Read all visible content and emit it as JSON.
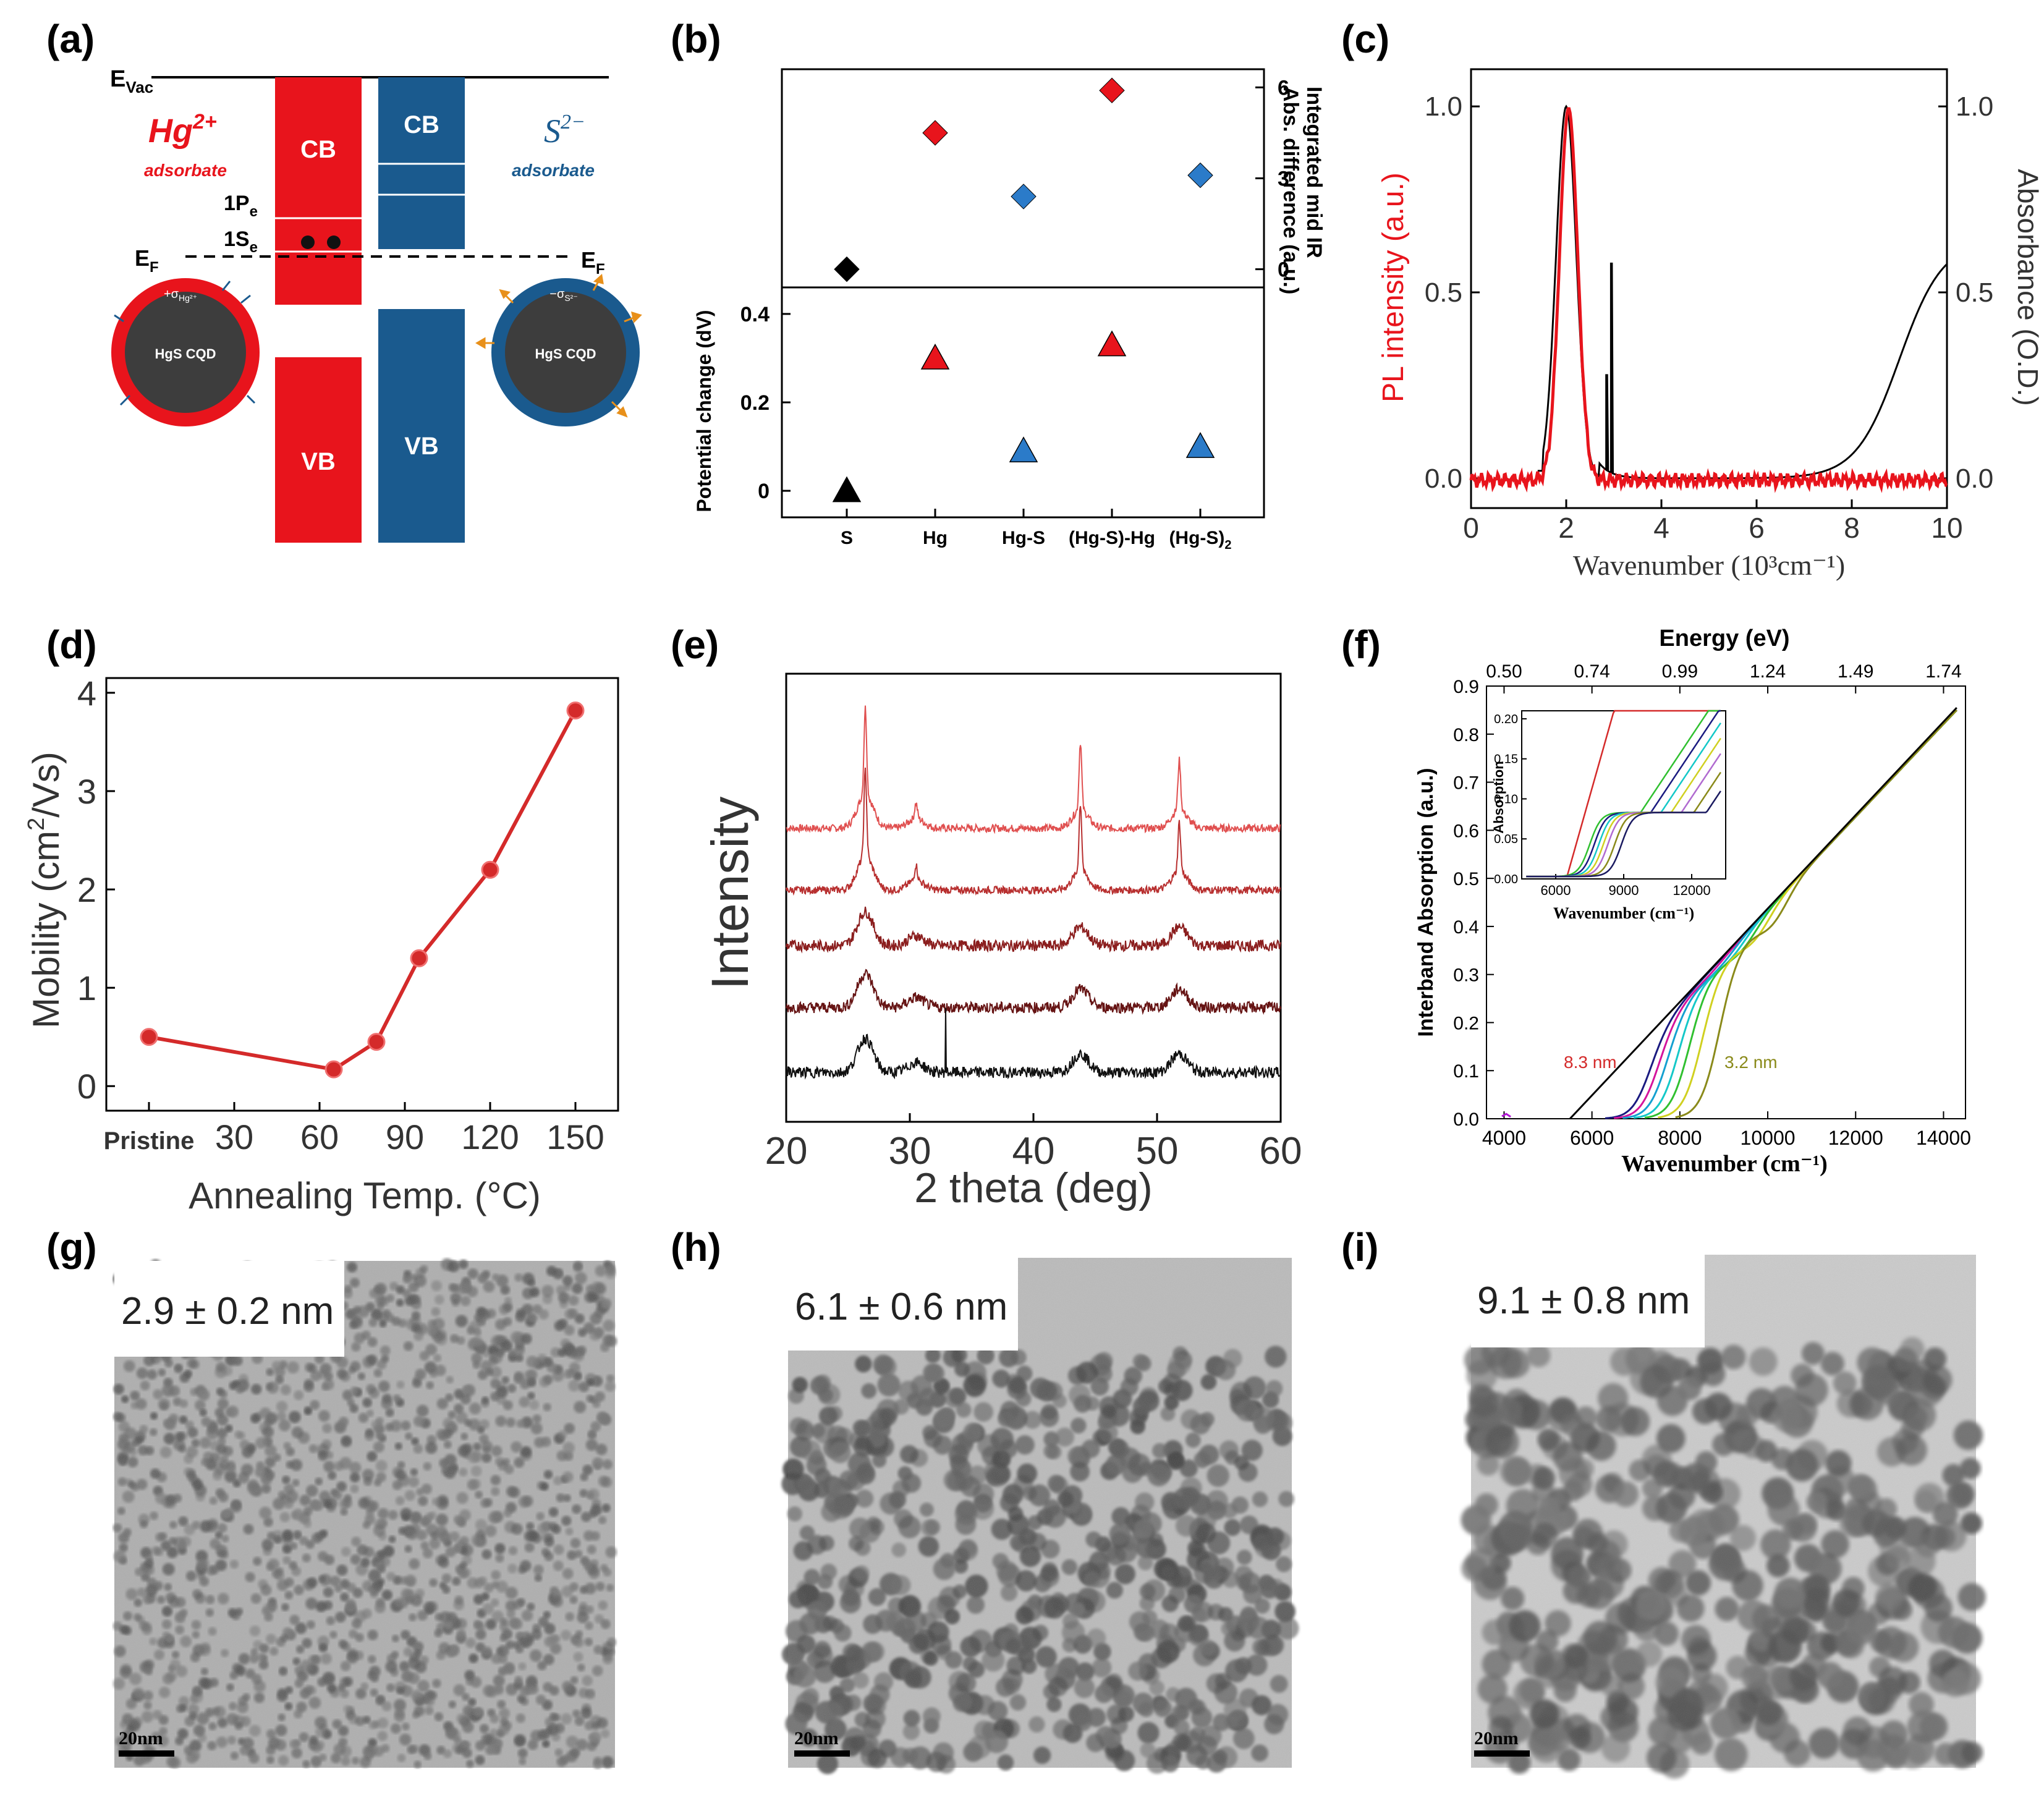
{
  "panel_labels": [
    "(a)",
    "(b)",
    "(c)",
    "(d)",
    "(e)",
    "(f)",
    "(g)",
    "(h)",
    "(i)"
  ],
  "colors": {
    "red": "#e8141c",
    "blue": "#1a5a8e",
    "black": "#000000",
    "olive": "#8a8a1a",
    "dark_red": "#8b1a1a"
  },
  "panel_a": {
    "evac": "E",
    "evac_sub": "Vac",
    "hg_label": "Hg",
    "hg_sup": "2+",
    "hg_adsorbate": "adsorbate",
    "s_label": "S",
    "s_sup": "2−",
    "s_adsorbate": "adsorbate",
    "cb": "CB",
    "vb": "VB",
    "level_1p": "1P",
    "level_1p_sub": "e",
    "level_1s": "1S",
    "level_1s_sub": "e",
    "ef": "E",
    "ef_sub": "F",
    "dot_left": "HgS CQD",
    "dot_right": "HgS CQD",
    "charge_left": "+σ",
    "charge_left_sub": "Hg²⁺",
    "charge_right": "−σ",
    "charge_right_sub": "S²⁻"
  },
  "chart_data": [
    {
      "id": "b_top",
      "type": "scatter",
      "categories": [
        "S",
        "Hg",
        "Hg-S",
        "(Hg-S)-Hg",
        "(Hg-S)"
      ],
      "category_sub": [
        "",
        "",
        "",
        "",
        "2"
      ],
      "values": [
        0,
        4.5,
        2.4,
        5.9,
        3.1
      ],
      "marker": "diamond",
      "marker_colors": [
        "#000000",
        "#e8141c",
        "#2b7bc9",
        "#e8141c",
        "#2b7bc9"
      ],
      "ylabel": "Integrated mid IR Abs. difference (a.u.)",
      "ylabel_line1": "Integrated mid IR",
      "ylabel_line2": "Abs. difference (a.u.)",
      "yticks": [
        0,
        3,
        6
      ],
      "ylim": [
        -0.6,
        6.6
      ]
    },
    {
      "id": "b_bottom",
      "type": "scatter",
      "categories": [
        "S",
        "Hg",
        "Hg-S",
        "(Hg-S)-Hg",
        "(Hg-S)"
      ],
      "values": [
        0.0,
        0.3,
        0.09,
        0.33,
        0.1
      ],
      "marker": "triangle",
      "marker_colors": [
        "#000000",
        "#e8141c",
        "#2b7bc9",
        "#e8141c",
        "#2b7bc9"
      ],
      "ylabel": "Potential change (dV)",
      "yticks": [
        0,
        0.2,
        0.4
      ],
      "ytick_labels": [
        "0",
        "0.2",
        "0.4"
      ],
      "ylim": [
        -0.06,
        0.46
      ]
    },
    {
      "id": "c",
      "type": "line",
      "xlabel": "Wavenumber (10³cm⁻¹)",
      "ylabel_left": "PL intensity (a.u.)",
      "ylabel_right": "Absorbance (O.D.)",
      "xlim": [
        0,
        10
      ],
      "ylim": [
        -0.08,
        1.1
      ],
      "xticks": [
        0,
        2,
        4,
        6,
        8,
        10
      ],
      "yticks": [
        0.0,
        0.5,
        1.0
      ],
      "ytick_labels": [
        "0.0",
        "0.5",
        "1.0"
      ],
      "series": [
        {
          "name": "PL",
          "color": "#e8141c",
          "peak_center": 2.05,
          "peak_width": 0.27,
          "baseline": -0.005
        },
        {
          "name": "Absorbance",
          "color": "#000000",
          "peak_center": 2.0,
          "peak_width": 0.3,
          "spike_x": [
            2.85,
            2.95
          ],
          "spike_y": [
            0.28,
            0.58
          ],
          "edge_center": 9.0,
          "edge_height": 0.64
        }
      ]
    },
    {
      "id": "d",
      "type": "line",
      "categories": [
        "Pristine",
        "30",
        "60",
        "90",
        "120",
        "150"
      ],
      "x": [
        0,
        65,
        80,
        95,
        120,
        150
      ],
      "values": [
        0.5,
        0.17,
        0.45,
        1.3,
        2.2,
        3.82
      ],
      "xlabel": "Annealing Temp. (°C)",
      "ylabel": "Mobility (cm²/Vs)",
      "ylabel_main": "Mobility (cm",
      "ylabel_sup": "2",
      "ylabel_tail": "/Vs)",
      "xticks": [
        0,
        30,
        60,
        90,
        120,
        150
      ],
      "yticks": [
        0,
        1,
        2,
        3,
        4
      ],
      "xlim": [
        -15,
        165
      ],
      "ylim": [
        -0.25,
        4.15
      ],
      "color": "#d42a2a"
    },
    {
      "id": "e",
      "type": "line",
      "xlabel": "2 theta (deg)",
      "ylabel": "Intensity",
      "xlim": [
        20,
        60
      ],
      "xticks": [
        20,
        30,
        40,
        50,
        60
      ],
      "peaks_deg": [
        26.4,
        30.5,
        43.8,
        51.8
      ],
      "series": [
        {
          "name": "trace-1",
          "color": "#e05050",
          "sharp": true
        },
        {
          "name": "trace-2",
          "color": "#b83030",
          "sharp": true
        },
        {
          "name": "trace-3",
          "color": "#8b1e1e",
          "sharp": false
        },
        {
          "name": "trace-4",
          "color": "#661414",
          "sharp": false
        },
        {
          "name": "trace-5",
          "color": "#111111",
          "sharp": false
        }
      ]
    },
    {
      "id": "f",
      "type": "line",
      "xlabel": "Wavenumber (cm⁻¹)",
      "ylabel": "Interband Absorption (a.u.)",
      "top_xlabel": "Energy (eV)",
      "top_ticks": [
        "0.50",
        "0.74",
        "0.99",
        "1.24",
        "1.49",
        "1.74"
      ],
      "xlim": [
        3600,
        14500
      ],
      "ylim": [
        0,
        0.9
      ],
      "xticks": [
        4000,
        6000,
        8000,
        10000,
        12000,
        14000
      ],
      "yticks": [
        0.0,
        0.1,
        0.2,
        0.3,
        0.4,
        0.5,
        0.6,
        0.7,
        0.8,
        0.9
      ],
      "ytick_labels": [
        "0.0",
        "0.1",
        "0.2",
        "0.3",
        "0.4",
        "0.5",
        "0.6",
        "0.7",
        "0.8",
        "0.9"
      ],
      "annotation_left": "8.3 nm",
      "annotation_right": "3.2 nm",
      "series": [
        {
          "name": "8.3 nm",
          "color": "#1a1a80",
          "onset": 6900
        },
        {
          "name": "s2",
          "color": "#d4149c",
          "onset": 7100
        },
        {
          "name": "s3",
          "color": "#14a0d0",
          "onset": 7300
        },
        {
          "name": "s4",
          "color": "#14c8c8",
          "onset": 7550
        },
        {
          "name": "s5",
          "color": "#30c030",
          "onset": 7800
        },
        {
          "name": "s6",
          "color": "#d0d020",
          "onset": 8100
        },
        {
          "name": "3.2 nm",
          "color": "#8a8a1a",
          "onset": 8500
        },
        {
          "name": "fit",
          "color": "#000000",
          "onset": 5500
        }
      ],
      "inset": {
        "xlabel": "Wavenumber (cm⁻¹)",
        "ylabel": "Absorption",
        "xticks": [
          6000,
          9000,
          12000
        ],
        "xlim": [
          4500,
          13500
        ],
        "yticks": [
          0.0,
          0.05,
          0.1,
          0.15,
          0.2
        ],
        "ytick_labels": [
          "0.00",
          "0.05",
          "0.10",
          "0.15",
          "0.20"
        ],
        "ylim": [
          0,
          0.21
        ]
      }
    }
  ],
  "tem": [
    {
      "id": "g",
      "size_label": "2.9 ± 0.2 nm",
      "scale_bar": "20nm"
    },
    {
      "id": "h",
      "size_label": "6.1 ± 0.6 nm",
      "scale_bar": "20nm"
    },
    {
      "id": "i",
      "size_label": "9.1 ± 0.8 nm",
      "scale_bar": "20nm"
    }
  ]
}
